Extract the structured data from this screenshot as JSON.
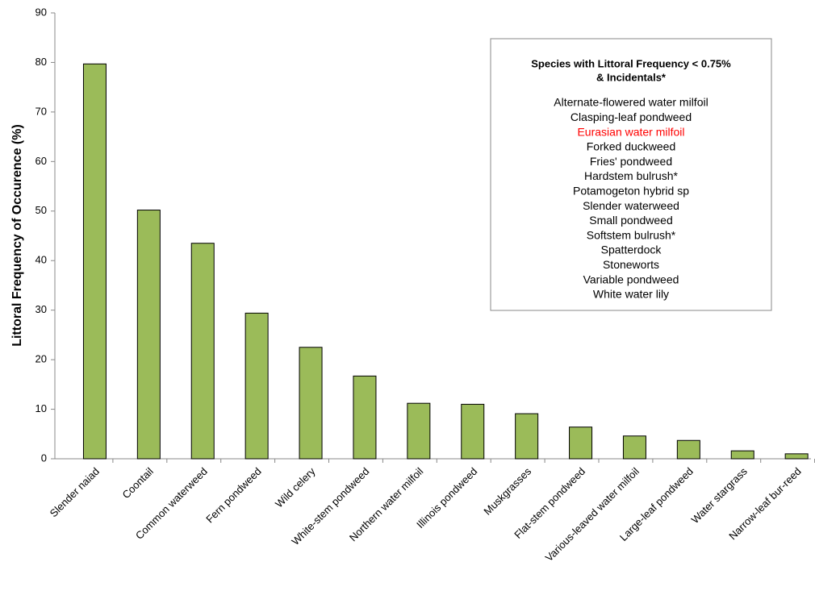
{
  "chart_data": {
    "type": "bar",
    "y_label": "Littoral Frequency of Occurence (%)",
    "categories": [
      "Slender naiad",
      "Coontail",
      "Common waterweed",
      "Fern pondweed",
      "Wild celery",
      "White-stem pondweed",
      "Northern water milfoil",
      "Illinois pondweed",
      "Muskgrasses",
      "Flat-stem pondweed",
      "Various-leaved water milfoil",
      "Large-leaf pondweed",
      "Water stargrass",
      "Narrow-leaf  bur-reed"
    ],
    "values": [
      79.7,
      50.2,
      43.5,
      29.4,
      22.5,
      16.7,
      11.2,
      11.0,
      9.1,
      6.4,
      4.6,
      3.7,
      1.6,
      1.0
    ],
    "color": "#9bbb59",
    "ylim": [
      0,
      90
    ],
    "yticks": [
      0,
      10,
      20,
      30,
      40,
      50,
      60,
      70,
      80,
      90
    ],
    "grid": false,
    "annotation": {
      "title": [
        "Species with Littoral Frequency < 0.75%",
        "& Incidentals*"
      ],
      "items": [
        {
          "text": "Alternate-flowered water milfoil",
          "color": "#000000"
        },
        {
          "text": "Clasping-leaf pondweed",
          "color": "#000000"
        },
        {
          "text": "Eurasian water milfoil",
          "color": "#ff0000"
        },
        {
          "text": "Forked duckweed",
          "color": "#000000"
        },
        {
          "text": "Fries' pondweed",
          "color": "#000000"
        },
        {
          "text": "Hardstem bulrush*",
          "color": "#000000"
        },
        {
          "text": "Potamogeton hybrid sp",
          "color": "#000000"
        },
        {
          "text": "Slender waterweed",
          "color": "#000000"
        },
        {
          "text": "Small pondweed",
          "color": "#000000"
        },
        {
          "text": "Softstem bulrush*",
          "color": "#000000"
        },
        {
          "text": "Spatterdock",
          "color": "#000000"
        },
        {
          "text": "Stoneworts",
          "color": "#000000"
        },
        {
          "text": "Variable pondweed",
          "color": "#000000"
        },
        {
          "text": "White water lily",
          "color": "#000000"
        }
      ]
    }
  }
}
